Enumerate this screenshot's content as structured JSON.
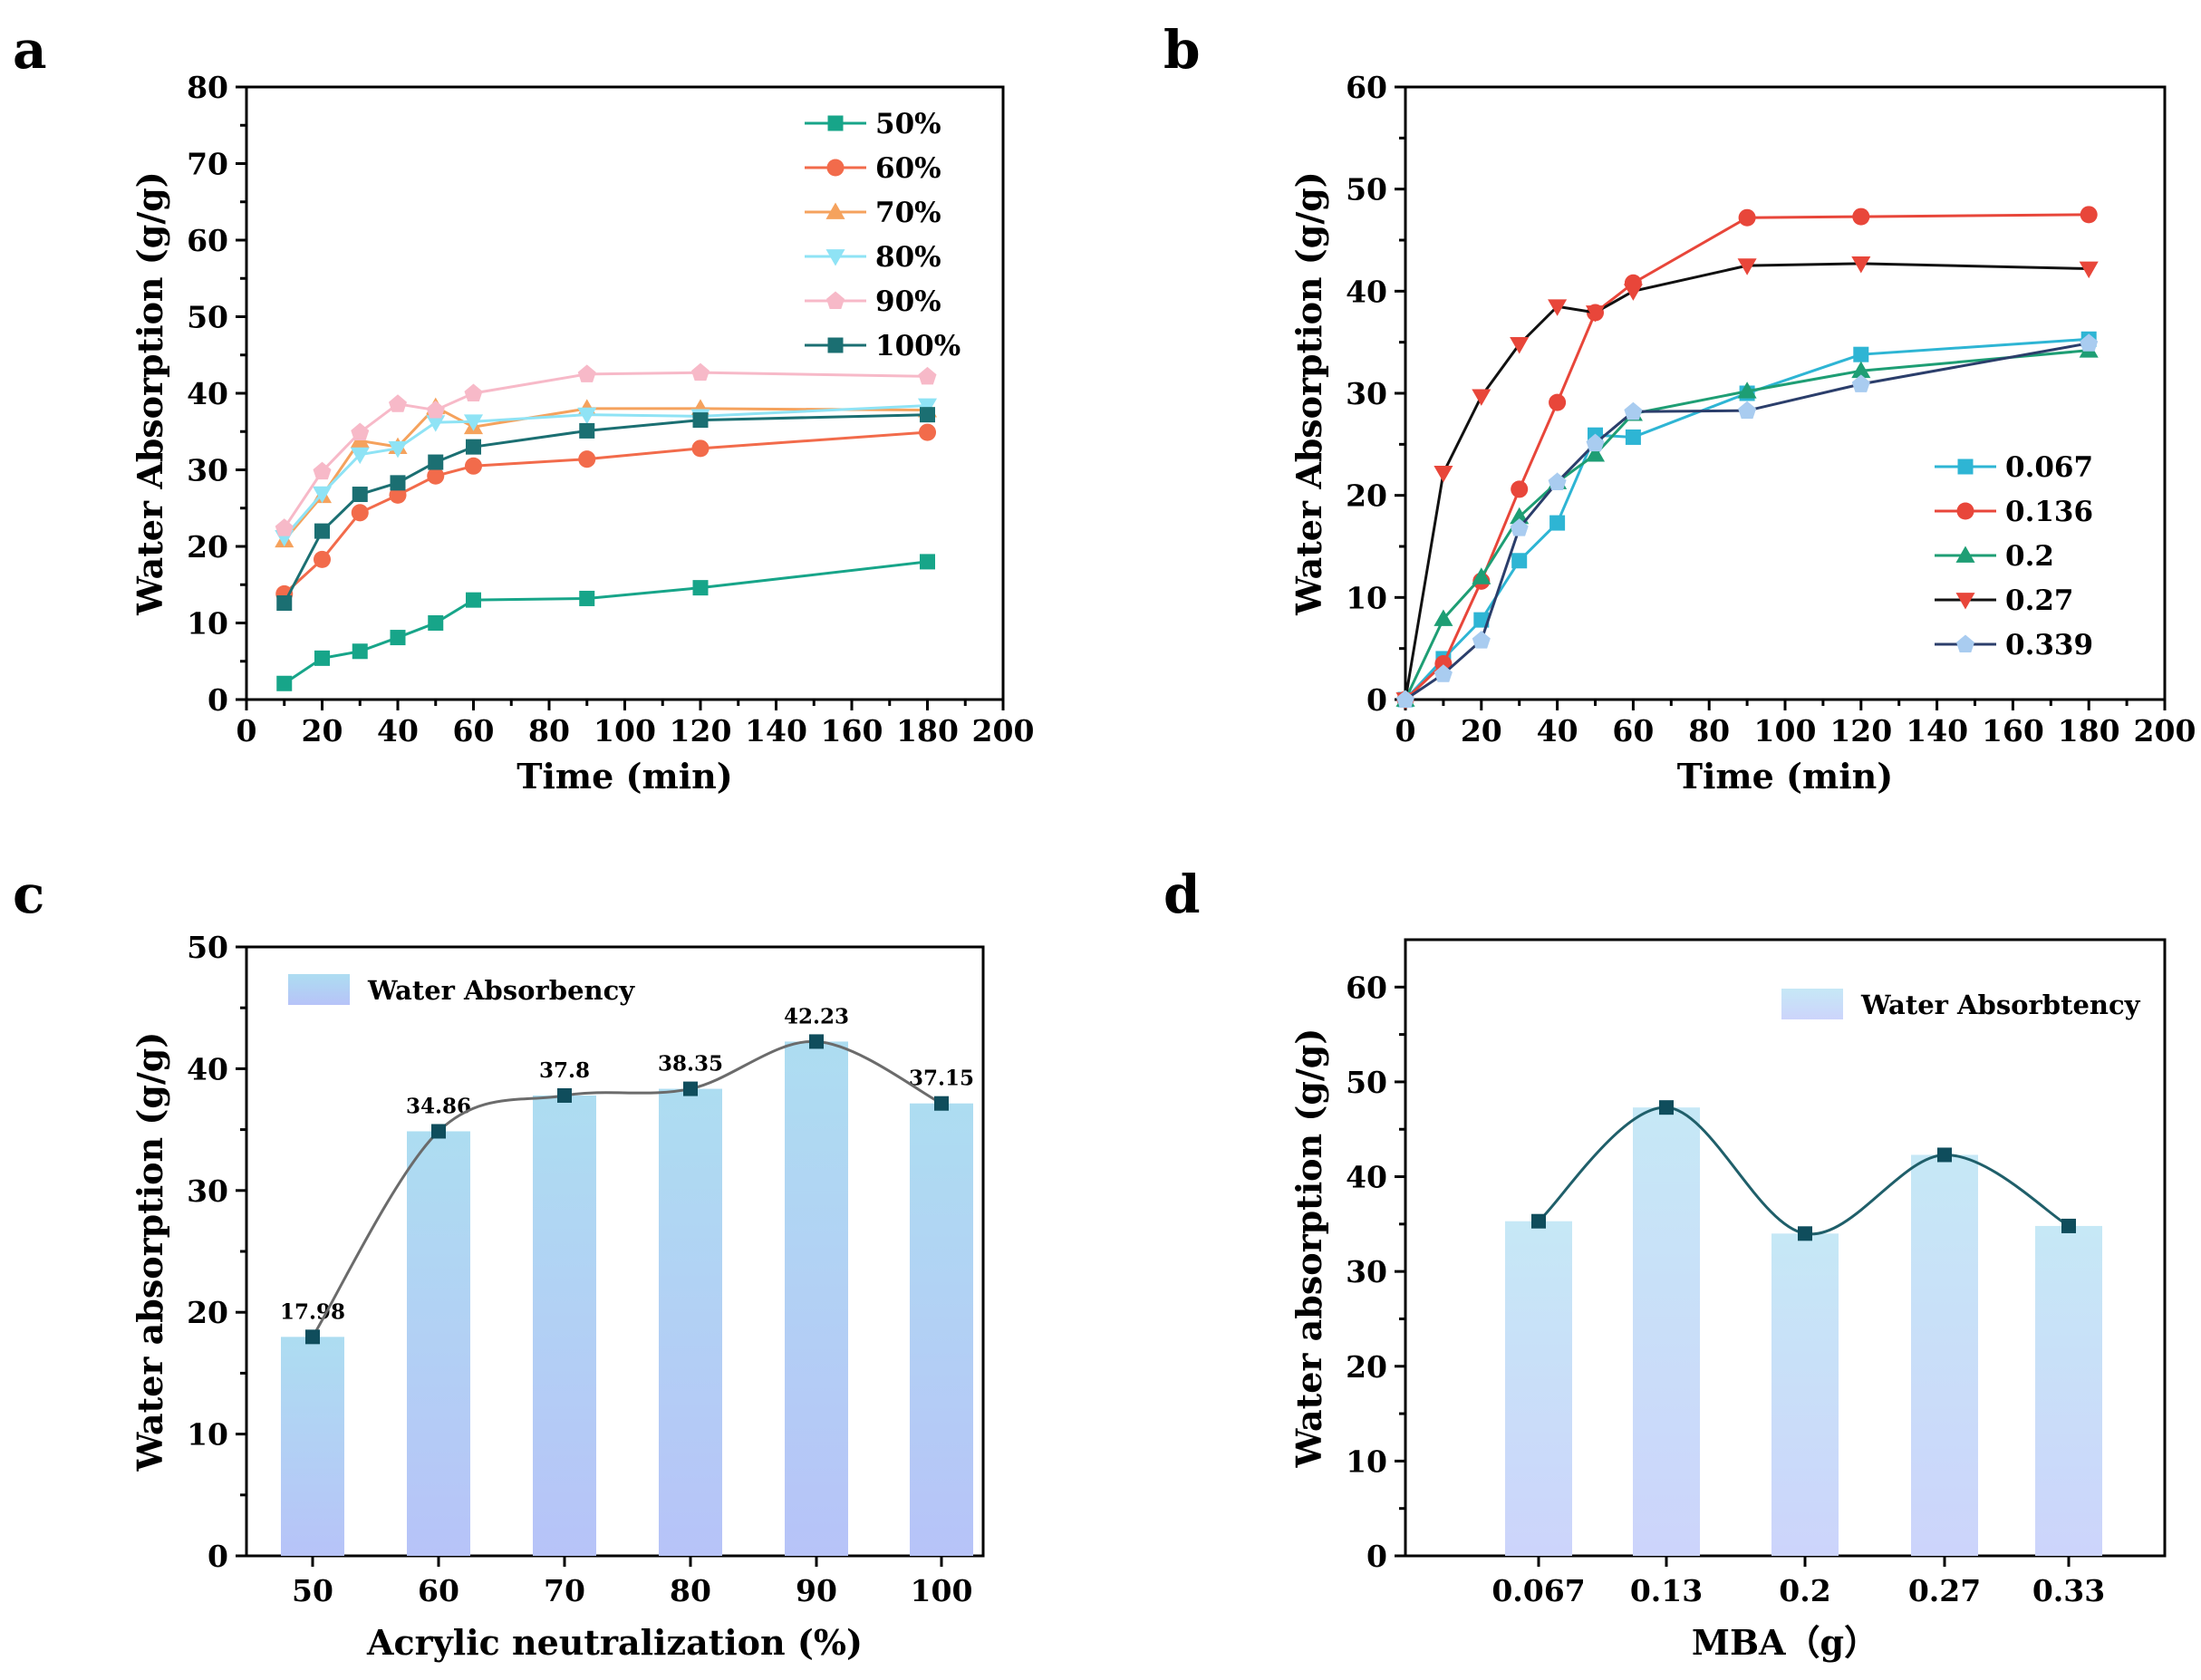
{
  "panels": {
    "a": {
      "label": "a"
    },
    "b": {
      "label": "b"
    },
    "c": {
      "label": "c"
    },
    "d": {
      "label": "d"
    }
  },
  "colors": {
    "teal": "#17A589",
    "orange_red": "#F26B4B",
    "orange": "#F5A25D",
    "light_cyan": "#8FE3F5",
    "pink": "#F7B9C8",
    "dark_teal": "#1B6F72",
    "cyan": "#2EB5D4",
    "red": "#E8463A",
    "green": "#1E9E74",
    "black": "#111111",
    "navy": "#2B3E6B",
    "bar_top": "#ADDDF1",
    "bar_bottom": "#B7C3F8",
    "bar_d_top": "#C6E8F6",
    "bar_d_bottom": "#CCD4FB",
    "fit_line": "#6B6B6B",
    "fit_line_d": "#1F5F6A",
    "square_marker": "#0F4D5C"
  },
  "chart_data": [
    {
      "id": "a",
      "type": "line",
      "xlabel": "Time (min)",
      "ylabel": "Water Absorption (g/g)",
      "xlim": [
        0,
        200
      ],
      "ylim": [
        0,
        80
      ],
      "xticks": [
        "0",
        "20",
        "40",
        "60",
        "80",
        "100",
        "120",
        "140",
        "160",
        "180",
        "200"
      ],
      "yticks": [
        "0",
        "10",
        "20",
        "30",
        "40",
        "50",
        "60",
        "70",
        "80"
      ],
      "x": [
        10,
        20,
        30,
        40,
        50,
        60,
        90,
        120,
        180
      ],
      "series": [
        {
          "name": "50%",
          "marker": "square",
          "color": "#17A589",
          "values": [
            2.1,
            5.4,
            6.3,
            8.1,
            10.0,
            13.0,
            13.2,
            14.6,
            18.0
          ]
        },
        {
          "name": "60%",
          "marker": "circle",
          "color": "#F26B4B",
          "values": [
            13.8,
            18.3,
            24.4,
            26.7,
            29.2,
            30.5,
            31.4,
            32.8,
            34.9
          ]
        },
        {
          "name": "70%",
          "marker": "triangle-up",
          "color": "#F5A25D",
          "values": [
            20.8,
            26.6,
            33.8,
            33.0,
            38.2,
            35.6,
            38.0,
            38.0,
            37.8
          ]
        },
        {
          "name": "80%",
          "marker": "triangle-down",
          "color": "#8FE3F5",
          "values": [
            21.2,
            26.9,
            32.0,
            32.8,
            36.2,
            36.3,
            37.2,
            37.0,
            38.4
          ]
        },
        {
          "name": " 90%",
          "marker": "diamond",
          "color": "#F7B9C8",
          "values": [
            22.4,
            29.8,
            34.9,
            38.6,
            37.8,
            40.0,
            42.5,
            42.7,
            42.2
          ]
        },
        {
          "name": "100%",
          "marker": "square",
          "color": "#1B6F72",
          "values": [
            12.6,
            22.0,
            26.8,
            28.3,
            31.0,
            33.0,
            35.1,
            36.5,
            37.2
          ]
        }
      ],
      "legend": "top-right"
    },
    {
      "id": "b",
      "type": "line",
      "xlabel": "Time (min)",
      "ylabel": "Water Absorption (g/g)",
      "xlim": [
        0,
        200
      ],
      "ylim": [
        0,
        60
      ],
      "xticks": [
        "0",
        "20",
        "40",
        "60",
        "80",
        "100",
        "120",
        "140",
        "160",
        "180",
        "200"
      ],
      "yticks": [
        "0",
        "10",
        "20",
        "30",
        "40",
        "50",
        "60"
      ],
      "x": [
        0,
        10,
        20,
        30,
        40,
        50,
        60,
        90,
        120,
        180
      ],
      "series": [
        {
          "name": "0.067",
          "marker": "square",
          "color": "#2EB5D4",
          "values": [
            0,
            4.0,
            7.8,
            13.6,
            17.3,
            25.9,
            25.7,
            30.0,
            33.8,
            35.3
          ]
        },
        {
          "name": "0.136",
          "marker": "circle",
          "color": "#E8463A",
          "values": [
            0,
            3.5,
            11.6,
            20.6,
            29.1,
            37.9,
            40.8,
            47.2,
            47.3,
            47.5
          ]
        },
        {
          "name": "0.2",
          "marker": "triangle-up",
          "color": "#1E9E74",
          "values": [
            0,
            7.9,
            12.0,
            17.9,
            21.3,
            24.0,
            28.0,
            30.2,
            32.2,
            34.2
          ]
        },
        {
          "name": "0.27",
          "marker": "triangle-down",
          "color": "#E8463A",
          "lineColor": "#111111",
          "values": [
            0,
            22.2,
            29.7,
            34.8,
            38.5,
            37.9,
            40.0,
            42.5,
            42.7,
            42.2
          ]
        },
        {
          "name": "0.339",
          "marker": "diamond",
          "color": "#A9CCF0",
          "lineColor": "#2B3E6B",
          "values": [
            0,
            2.5,
            5.8,
            16.8,
            21.3,
            25.1,
            28.2,
            28.3,
            30.9,
            34.9
          ]
        }
      ],
      "legend": "bottom-right"
    },
    {
      "id": "c",
      "type": "bar",
      "xlabel": "Acrylic neutralization (%)",
      "ylabel": "Water absorption (g/g)",
      "ylim": [
        0,
        50
      ],
      "yticks": [
        "0",
        "10",
        "20",
        "30",
        "40",
        "50"
      ],
      "categories": [
        "50",
        "60",
        "70",
        "80",
        "90",
        "100"
      ],
      "values": [
        17.98,
        34.86,
        37.8,
        38.35,
        42.23,
        37.15
      ],
      "data_labels": [
        "17.98",
        "34.86",
        "37.8",
        "38.35",
        "42.23",
        "37.15"
      ],
      "legend_label": "Water Absorbency",
      "fit_line": "smooth"
    },
    {
      "id": "d",
      "type": "bar",
      "xlabel": "MBA（g）",
      "ylabel": "Water absorption (g/g)",
      "ylim": [
        0,
        65
      ],
      "yticks": [
        "0",
        "10",
        "20",
        "30",
        "40",
        "50",
        "60"
      ],
      "categories": [
        "0.067",
        "0.13",
        "0.2",
        "0.27",
        "0.33"
      ],
      "values": [
        35.3,
        47.3,
        34.0,
        42.3,
        34.8
      ],
      "legend_label": "Water Absorbtency",
      "fit_line": "smooth"
    }
  ]
}
